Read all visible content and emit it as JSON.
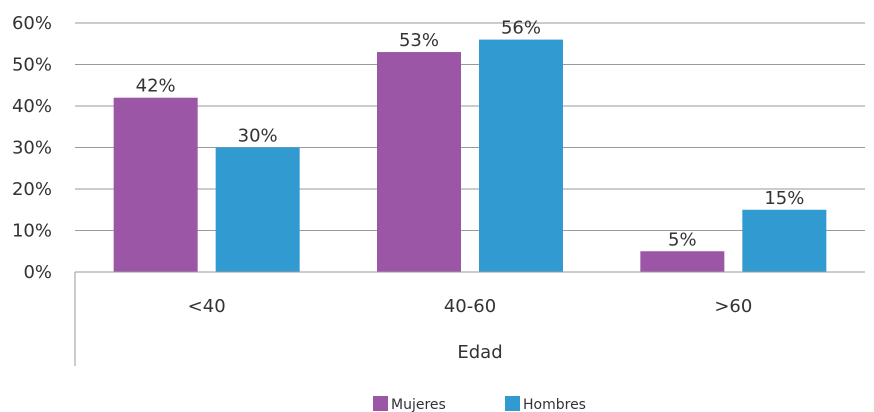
{
  "chart_data": {
    "type": "bar",
    "categories": [
      "<40",
      "40-60",
      ">60"
    ],
    "series": [
      {
        "name": "Mujeres",
        "values": [
          42,
          53,
          5
        ],
        "color": "#9b56a5"
      },
      {
        "name": "Hombres",
        "values": [
          30,
          56,
          15
        ],
        "color": "#319ad0"
      }
    ],
    "value_suffix": "%",
    "xlabel": "Edad",
    "ylabel": "",
    "ylim": [
      0,
      60
    ],
    "yticks": [
      0,
      10,
      20,
      30,
      40,
      50,
      60
    ],
    "ytick_labels": [
      "0%",
      "10%",
      "20%",
      "30%",
      "40%",
      "50%",
      "60%"
    ],
    "grid": true,
    "legend_position": "bottom"
  }
}
